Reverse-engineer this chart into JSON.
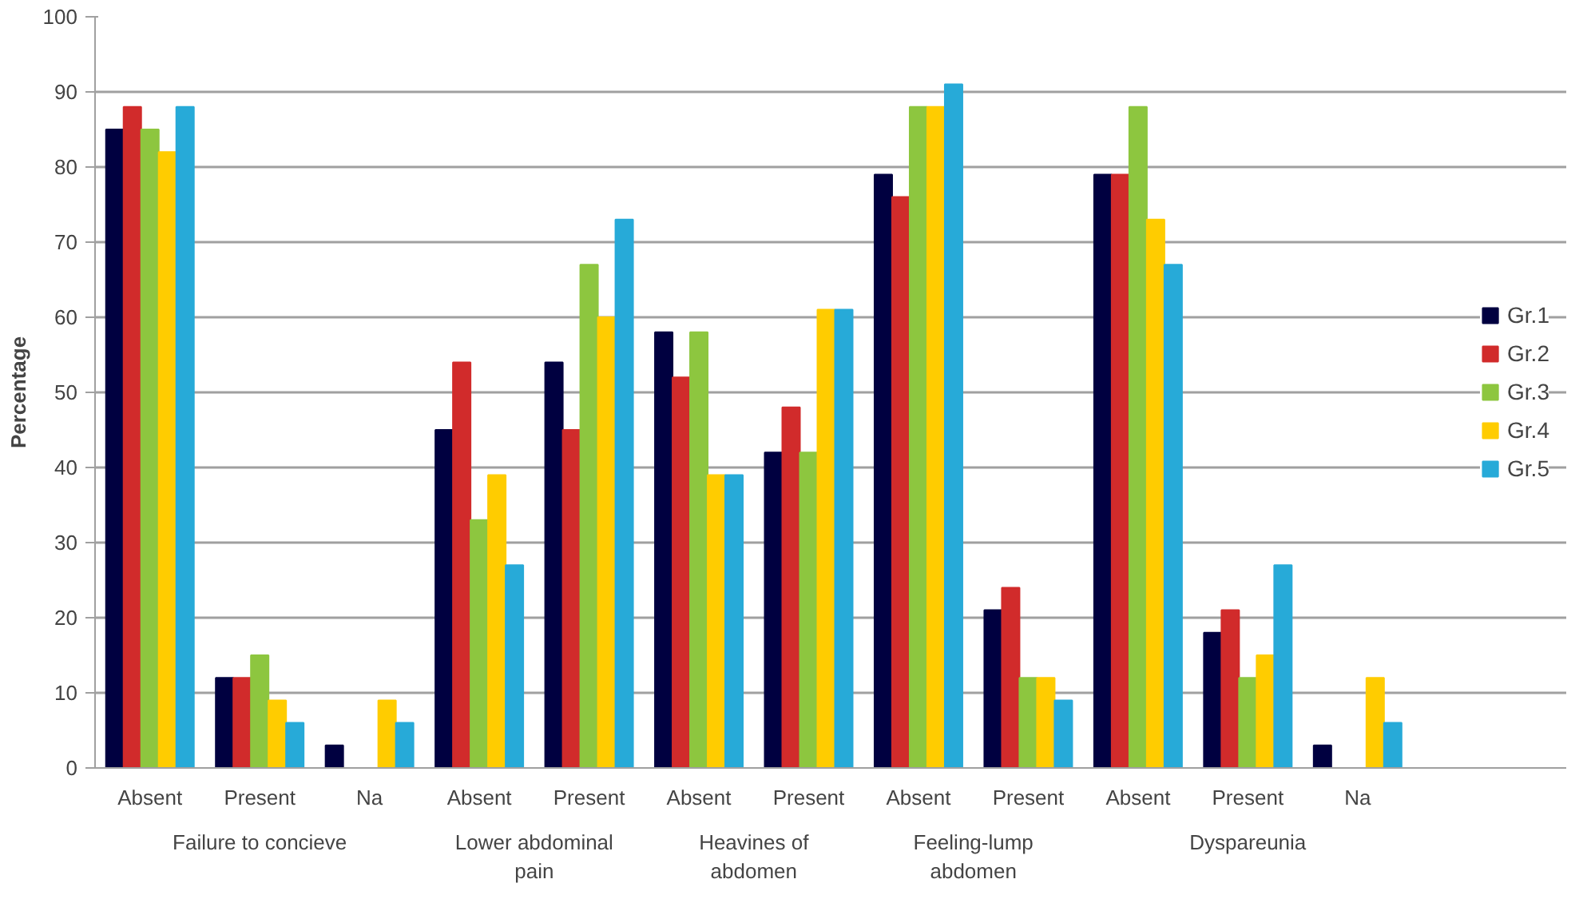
{
  "chart_data": {
    "type": "bar",
    "ylabel": "Percentage",
    "categories": [
      "Absent",
      "Present",
      "Na",
      "Absent",
      "Present",
      "Absent",
      "Present",
      "Absent",
      "Present",
      "Absent",
      "Present",
      "Na"
    ],
    "series": [
      {
        "name": "Gr.1",
        "color": "#000040",
        "values": [
          85,
          12,
          3,
          45,
          54,
          58,
          42,
          79,
          21,
          79,
          18,
          3
        ]
      },
      {
        "name": "Gr.2",
        "color": "#d12b2b",
        "values": [
          88,
          12,
          0,
          54,
          45,
          52,
          48,
          76,
          24,
          79,
          21,
          0
        ]
      },
      {
        "name": "Gr.3",
        "color": "#8dc63f",
        "values": [
          85,
          15,
          0,
          33,
          67,
          58,
          42,
          88,
          12,
          88,
          12,
          0
        ]
      },
      {
        "name": "Gr.4",
        "color": "#ffcc00",
        "values": [
          82,
          9,
          9,
          39,
          60,
          39,
          61,
          88,
          12,
          73,
          15,
          12
        ]
      },
      {
        "name": "Gr.5",
        "color": "#27aad8",
        "values": [
          88,
          6,
          6,
          27,
          73,
          39,
          61,
          91,
          9,
          67,
          27,
          6
        ]
      }
    ],
    "annotations": [
      "Failure to concieve",
      "Lower abdominal pain",
      "Heavines of abdomen",
      "Feeling-lump abdomen",
      "Dyspareunia"
    ],
    "ylim": [
      0,
      100
    ],
    "yticks": [
      0,
      10,
      20,
      30,
      40,
      50,
      60,
      70,
      80,
      90,
      100
    ],
    "grid": "y",
    "legend": "right"
  }
}
